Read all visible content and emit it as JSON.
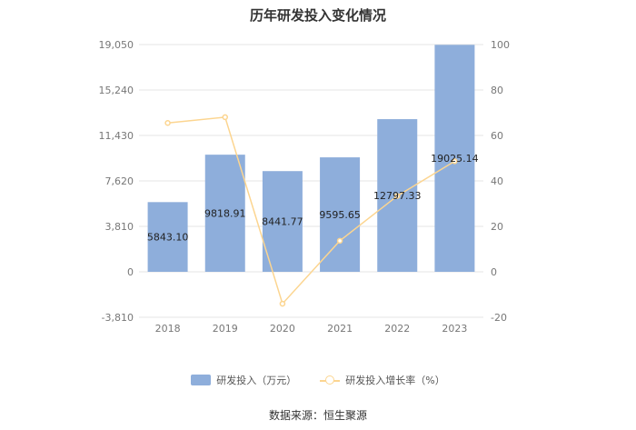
{
  "title": "历年研发投入变化情况",
  "source": "数据来源：恒生聚源",
  "colors": {
    "bar": "#8eaedb",
    "line": "#fcd590",
    "grid": "#e6e6e6"
  },
  "chart_data": {
    "type": "bar",
    "categories": [
      "2018",
      "2019",
      "2020",
      "2021",
      "2022",
      "2023"
    ],
    "series": [
      {
        "name": "研发投入（万元）",
        "type": "bar",
        "axis": "left",
        "values": [
          5843.1,
          9818.91,
          8441.77,
          9595.65,
          12797.33,
          19025.14
        ],
        "labels": [
          "5843.10",
          "9818.91",
          "8441.77",
          "9595.65",
          "12797.33",
          "19025.14"
        ]
      },
      {
        "name": "研发投入增长率（%）",
        "type": "line",
        "axis": "right",
        "values": [
          65.5,
          68.04,
          -14.03,
          13.67,
          33.37,
          48.66
        ]
      }
    ],
    "y_left": {
      "ylim": [
        -3810,
        19050
      ],
      "ticks": [
        -3810,
        0,
        3810,
        7620,
        11430,
        15240,
        19050
      ],
      "tick_labels": [
        "-3,810",
        "0",
        "3,810",
        "7,620",
        "11,430",
        "15,240",
        "19,050"
      ]
    },
    "y_right": {
      "ylim": [
        -20,
        100
      ],
      "ticks": [
        -20,
        0,
        20,
        40,
        60,
        80,
        100
      ],
      "tick_labels": [
        "-20",
        "0",
        "20",
        "40",
        "60",
        "80",
        "100"
      ]
    },
    "legend_position": "bottom"
  }
}
